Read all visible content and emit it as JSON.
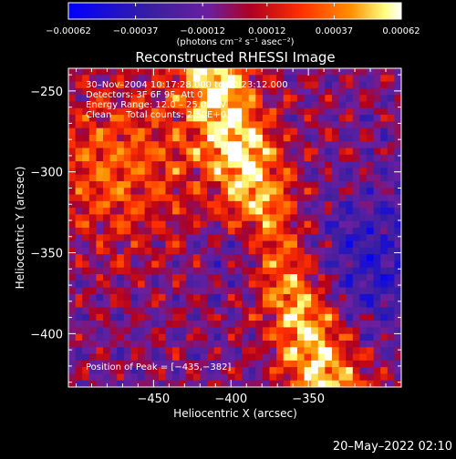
{
  "chart_data": {
    "type": "heatmap",
    "title": "Reconstructed RHESSI Image",
    "xlabel": "Heliocentric X (arcsec)",
    "ylabel": "Heliocentric Y (arcsec)",
    "xlim": [
      -505,
      -290
    ],
    "ylim": [
      -433,
      -236
    ],
    "xticks": [
      -450,
      -400,
      -350
    ],
    "xtick_labels": [
      "−450",
      "−400",
      "−350"
    ],
    "yticks": [
      -250,
      -300,
      -350,
      -400
    ],
    "ytick_labels": [
      "−250",
      "−300",
      "−350",
      "−400"
    ],
    "colorbar": {
      "min": -0.00062,
      "max": 0.00062,
      "ticks": [
        -0.00062,
        -0.00037,
        -0.00012,
        0.00012,
        0.00037,
        0.00062
      ],
      "tick_labels": [
        "−0.00062",
        "−0.00037",
        "−0.00012",
        "0.00012",
        "0.00037",
        "0.00062"
      ],
      "unit_label": "(photons cm⁻² s⁻¹ asec⁻²)"
    },
    "annotations": {
      "time_range": "30–Nov–2004 10:17:28.000 to 10:23:12.000",
      "detectors": "Detectors: 3F 6F 9F, Att 0",
      "energy_range": "Energy Range: 12.0 – 25.0 keV",
      "method_counts": "Clean     Total counts: 2.50E+03",
      "peak": "Position of Peak = [−435,−382]"
    },
    "peak_position": [
      -435,
      -382
    ],
    "colormap_colors": [
      "#0000ff",
      "#3a1fa0",
      "#6a1fa0",
      "#b00020",
      "#ff3000",
      "#ff9000",
      "#ffff80",
      "#ffffff"
    ]
  },
  "footer": {
    "timestamp": "20–May–2022 02:10"
  }
}
